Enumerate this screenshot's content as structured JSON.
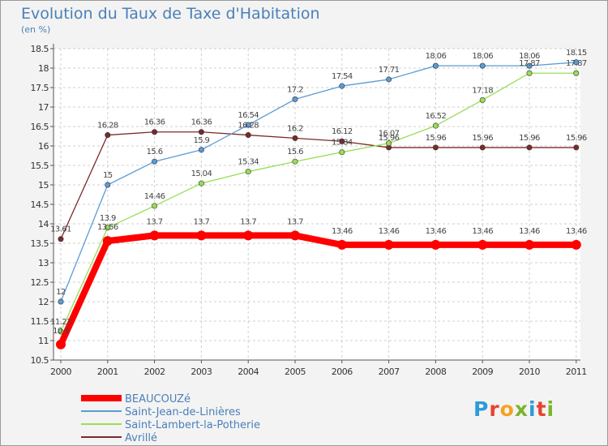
{
  "header": {
    "title": "Evolution du Taux de Taxe d'Habitation",
    "subtitle": "(en %)"
  },
  "logo": {
    "text": "Proxiti",
    "colors": [
      "#2e9ad8",
      "#e8422d",
      "#f4a320",
      "#7ab52a",
      "#2e9ad8",
      "#e8422d",
      "#7ab52a"
    ]
  },
  "chart_data": {
    "type": "line",
    "title": "Evolution du Taux de Taxe d'Habitation",
    "subtitle": "(en %)",
    "xlabel": "",
    "ylabel": "",
    "categories": [
      "2000",
      "2001",
      "2002",
      "2003",
      "2004",
      "2005",
      "2006",
      "2007",
      "2008",
      "2009",
      "2010",
      "2011"
    ],
    "ylim": [
      10.5,
      18.5
    ],
    "yticks": [
      "10.5",
      "11",
      "11.5",
      "12",
      "12.5",
      "13",
      "13.5",
      "14",
      "14.5",
      "15",
      "15.5",
      "16",
      "16.5",
      "17",
      "17.5",
      "18",
      "18.5"
    ],
    "grid": "horizontal dashed",
    "legend_position": "bottom-left",
    "series": [
      {
        "name": "BEAUCOUZé",
        "color": "#ff0000",
        "values": [
          10.9,
          13.56,
          13.7,
          13.7,
          13.7,
          13.7,
          13.46,
          13.46,
          13.46,
          13.46,
          13.46,
          13.46
        ],
        "labels": [
          "10.9",
          "13.56",
          "13.7",
          "13.7",
          "13.7",
          "13.7",
          "13.46",
          "13.46",
          "13.46",
          "13.46",
          "13.46",
          "13.46"
        ]
      },
      {
        "name": "Saint-Jean-de-Linières",
        "color": "#5b9bd5",
        "values": [
          12,
          15,
          15.6,
          15.9,
          16.54,
          17.2,
          17.54,
          17.71,
          18.06,
          18.06,
          18.06,
          18.15
        ],
        "labels": [
          "12",
          "15",
          "15.6",
          "15.9",
          "16.54",
          "17.2",
          "17.54",
          "17.71",
          "18.06",
          "18.06",
          "18.06",
          "18.15"
        ]
      },
      {
        "name": "Saint-Lambert-la-Potherie",
        "color": "#99dd55",
        "values": [
          11.23,
          13.9,
          14.46,
          15.04,
          15.34,
          15.6,
          15.84,
          16.07,
          16.52,
          17.18,
          17.87,
          17.87
        ],
        "labels": [
          "11.23",
          "13.9",
          "14.46",
          "15.04",
          "15.34",
          "15.6",
          "15.84",
          "16.07",
          "16.52",
          "17.18",
          "17.87",
          "17.87"
        ]
      },
      {
        "name": "Avrillé",
        "color": "#7a2a2a",
        "values": [
          13.61,
          16.28,
          16.36,
          16.36,
          16.28,
          16.2,
          16.12,
          15.96,
          15.96,
          15.96,
          15.96,
          15.96
        ],
        "labels": [
          "13.61",
          "16.28",
          "16.36",
          "16.36",
          "16.28",
          "16.2",
          "16.12",
          "15.96",
          "15.96",
          "15.96",
          "15.96",
          "15.96"
        ]
      }
    ]
  }
}
